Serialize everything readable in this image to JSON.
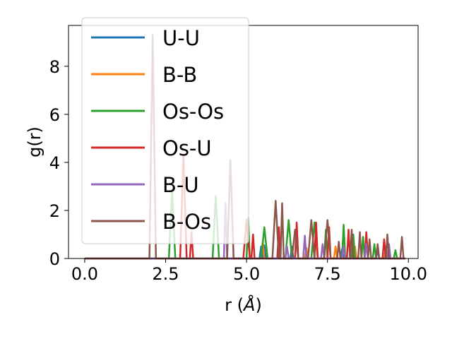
{
  "chart_data": {
    "type": "line",
    "xlabel": "r (",
    "xlabel_unit": "Å",
    "xlabel_close": ")",
    "ylabel": "g(r)",
    "xlim": [
      -0.5,
      10.3
    ],
    "ylim": [
      0,
      9.7
    ],
    "xticks": [
      0.0,
      2.5,
      5.0,
      7.5,
      10.0
    ],
    "xtick_labels": [
      "0.0",
      "2.5",
      "5.0",
      "7.5",
      "10.0"
    ],
    "yticks": [
      0,
      2,
      4,
      6,
      8
    ],
    "ytick_labels": [
      "0",
      "2",
      "4",
      "6",
      "8"
    ],
    "grid": false,
    "legend_position": "top-left",
    "series": [
      {
        "name": "U-U",
        "color": "#1f77b4",
        "x": [
          0.0,
          5.4,
          5.45,
          5.5,
          5.55,
          5.6,
          6.35,
          6.4,
          6.45,
          7.9,
          7.95,
          8.0,
          9.0,
          9.05,
          9.1,
          9.9
        ],
        "y": [
          0,
          0,
          0.5,
          0,
          0.55,
          0,
          0,
          0.5,
          0,
          0,
          0.4,
          0,
          0,
          0.35,
          0,
          0
        ]
      },
      {
        "name": "B-B",
        "color": "#ff7f0e",
        "x": [
          0.0,
          5.45,
          5.5,
          5.55,
          6.8,
          6.85,
          6.9,
          7.7,
          7.75,
          7.8,
          8.3,
          8.35,
          8.4,
          9.25,
          9.3,
          9.35,
          9.9
        ],
        "y": [
          0,
          0,
          0.7,
          0,
          0,
          0.45,
          0,
          0,
          0.5,
          0,
          0,
          0.5,
          0,
          0,
          0.45,
          0,
          0
        ]
      },
      {
        "name": "Os-Os",
        "color": "#2ca02c",
        "x": [
          0.0,
          2.6,
          2.7,
          2.8,
          3.95,
          4.05,
          4.15,
          5.0,
          5.05,
          5.1,
          5.45,
          5.55,
          5.65,
          5.95,
          6.0,
          6.05,
          6.2,
          6.3,
          6.4,
          7.0,
          7.1,
          7.2,
          7.4,
          7.45,
          7.5,
          7.95,
          8.0,
          8.05,
          8.25,
          8.3,
          8.35,
          8.55,
          8.6,
          8.65,
          8.9,
          8.95,
          9.0,
          9.55,
          9.6,
          9.65,
          9.9
        ],
        "y": [
          0,
          0,
          2.8,
          0,
          0,
          2.6,
          0,
          0,
          1.7,
          0,
          0,
          1.3,
          0,
          0,
          0.4,
          0,
          0,
          1.6,
          0,
          0,
          1.5,
          0,
          0,
          1.2,
          0,
          0,
          1.4,
          0,
          0,
          1.0,
          0,
          0,
          0.9,
          0,
          0,
          0.6,
          0,
          0,
          0.35,
          0,
          0
        ]
      },
      {
        "name": "Os-U",
        "color": "#d62728",
        "x": [
          0.0,
          2.95,
          3.05,
          3.15,
          3.25,
          3.3,
          3.35,
          4.9,
          5.0,
          5.1,
          5.15,
          5.2,
          5.25,
          5.95,
          6.0,
          6.05,
          6.5,
          6.55,
          6.6,
          7.1,
          7.15,
          7.2,
          7.5,
          7.55,
          7.6,
          8.1,
          8.15,
          8.2,
          8.65,
          8.7,
          8.75,
          9.2,
          9.25,
          9.3,
          9.9
        ],
        "y": [
          0,
          0,
          4.3,
          0,
          0,
          1.1,
          0,
          0,
          1.6,
          0,
          0,
          1.0,
          0,
          0,
          1.3,
          0,
          0,
          1.5,
          0,
          0,
          1.5,
          0,
          0,
          1.3,
          0,
          0,
          1.2,
          0,
          0,
          1.1,
          0,
          0,
          0.8,
          0,
          0
        ]
      },
      {
        "name": "B-U",
        "color": "#9467bd",
        "x": [
          0.0,
          4.3,
          4.35,
          4.4,
          6.2,
          6.25,
          6.3,
          6.75,
          6.8,
          6.85,
          7.3,
          7.35,
          7.4,
          7.95,
          8.0,
          8.05,
          8.65,
          8.7,
          8.75,
          9.35,
          9.4,
          9.45,
          9.9
        ],
        "y": [
          0,
          0,
          2.3,
          0,
          0,
          0.5,
          0,
          0,
          0.95,
          0,
          0,
          0.6,
          0,
          0,
          0.5,
          0,
          0,
          0.6,
          0,
          0,
          0.6,
          0,
          0
        ]
      },
      {
        "name": "B-Os",
        "color": "#8c564b",
        "x": [
          0.0,
          2.0,
          2.1,
          2.2,
          4.4,
          4.5,
          4.6,
          5.8,
          5.9,
          6.0,
          6.05,
          6.1,
          6.15,
          6.4,
          6.5,
          6.6,
          6.9,
          7.0,
          7.1,
          7.4,
          7.5,
          7.6,
          7.8,
          7.85,
          7.9,
          8.2,
          8.25,
          8.3,
          8.45,
          8.5,
          8.55,
          8.75,
          8.8,
          8.85,
          9.0,
          9.05,
          9.1,
          9.3,
          9.35,
          9.4,
          9.75,
          9.8,
          9.85,
          9.9
        ],
        "y": [
          0,
          0,
          9.3,
          0,
          0,
          4.1,
          0,
          0,
          2.4,
          0,
          0,
          2.3,
          0,
          0,
          1.2,
          0,
          0,
          1.6,
          0,
          0,
          1.6,
          0,
          0,
          0.7,
          0,
          0,
          1.2,
          0,
          0,
          1.1,
          0,
          0,
          0.8,
          0,
          0,
          0.6,
          0,
          0,
          1.0,
          0,
          0,
          0.9,
          0,
          0
        ]
      }
    ]
  }
}
